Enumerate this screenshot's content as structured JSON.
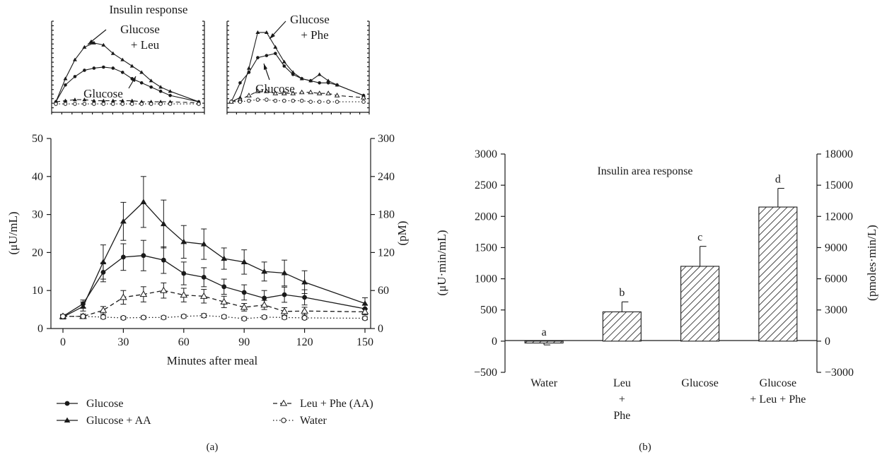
{
  "inset_title": "Insulin response",
  "inset_left": {
    "label_top_line1": "Glucose",
    "label_top_line2": "+ Leu",
    "label_bottom": "Glucose"
  },
  "inset_right": {
    "label_top_line1": "Glucose",
    "label_top_line2": "+ Phe",
    "label_bottom": "Glucose"
  },
  "legend": {
    "glucose": "Glucose",
    "glucose_aa": "Glucose + AA",
    "leu_phe": "Leu + Phe (AA)",
    "water": "Water"
  },
  "panel_labels": {
    "a": "(a)",
    "b": "(b)"
  },
  "chart_data": [
    {
      "id": "a",
      "type": "line",
      "xlabel": "Minutes after meal",
      "ylabel": "(μU/mL)",
      "ylabel_right": "(pM)",
      "xlim": [
        0,
        150
      ],
      "ylim": [
        0,
        50
      ],
      "ylim_right": [
        0,
        300
      ],
      "xticks": [
        0,
        30,
        60,
        90,
        120,
        150
      ],
      "yticks": [
        0,
        10,
        20,
        30,
        40,
        50
      ],
      "yticks_right": [
        0,
        60,
        120,
        180,
        240,
        300
      ],
      "x": [
        0,
        10,
        20,
        30,
        40,
        50,
        60,
        70,
        80,
        90,
        100,
        110,
        120,
        150
      ],
      "series": [
        {
          "name": "Glucose",
          "marker": "circle",
          "line": "solid",
          "values": [
            3.2,
            6.5,
            14.8,
            18.8,
            19.2,
            18.0,
            14.5,
            13.5,
            11.0,
            9.5,
            8.0,
            8.9,
            8.2,
            5.2
          ],
          "errors": [
            0.5,
            1.0,
            2.5,
            3.5,
            4.0,
            3.5,
            3.0,
            2.5,
            2.0,
            2.0,
            2.0,
            2.0,
            2.0,
            1.0
          ]
        },
        {
          "name": "Glucose + AA",
          "marker": "triangle",
          "line": "solid",
          "values": [
            3.0,
            5.8,
            17.5,
            28.2,
            33.3,
            27.5,
            22.8,
            22.2,
            18.4,
            17.5,
            15.0,
            14.6,
            12.2,
            6.6
          ],
          "errors": [
            0.5,
            1.2,
            4.5,
            5.0,
            6.7,
            6.3,
            4.3,
            4.0,
            2.8,
            3.2,
            2.5,
            3.4,
            3.0,
            1.5
          ]
        },
        {
          "name": "Leu + Phe (AA)",
          "marker": "open-triangle",
          "line": "dashed",
          "values": [
            3.2,
            3.2,
            4.8,
            8.2,
            9.0,
            10.0,
            8.8,
            8.5,
            7.0,
            5.6,
            6.2,
            4.5,
            4.6,
            4.4
          ],
          "errors": [
            0.4,
            0.6,
            1.0,
            1.8,
            2.0,
            2.0,
            1.8,
            1.8,
            1.5,
            1.0,
            1.2,
            1.0,
            1.0,
            0.8
          ]
        },
        {
          "name": "Water",
          "marker": "open-circle",
          "line": "dotted",
          "values": [
            3.2,
            3.2,
            3.0,
            2.8,
            2.9,
            2.9,
            3.2,
            3.4,
            3.1,
            2.6,
            3.0,
            2.9,
            2.8,
            2.7
          ],
          "errors": [
            0.3,
            0.3,
            0.4,
            0.4,
            0.4,
            0.4,
            0.4,
            0.5,
            0.4,
            0.4,
            0.4,
            0.4,
            0.4,
            0.4
          ]
        }
      ]
    },
    {
      "id": "inset-left",
      "type": "line",
      "title": "Insulin response",
      "series": [
        {
          "name": "Glucose + Leu",
          "marker": "triangle",
          "line": "solid",
          "x": [
            0,
            10,
            20,
            30,
            40,
            50,
            60,
            70,
            80,
            90,
            100,
            110,
            120,
            150
          ],
          "values": [
            3,
            14,
            23,
            29,
            31,
            30,
            26,
            23,
            20,
            17,
            13,
            10,
            8,
            3
          ]
        },
        {
          "name": "Glucose",
          "marker": "circle",
          "line": "solid",
          "x": [
            0,
            10,
            20,
            30,
            40,
            50,
            60,
            70,
            80,
            90,
            100,
            110,
            120,
            150
          ],
          "values": [
            3,
            11,
            15,
            18,
            19,
            19.5,
            19,
            17,
            14,
            12,
            10,
            8,
            6,
            3
          ]
        },
        {
          "name": "Leu",
          "marker": "triangle",
          "line": "dashed",
          "x": [
            0,
            10,
            20,
            30,
            40,
            50,
            60,
            70,
            80,
            90,
            100,
            110,
            120,
            150
          ],
          "values": [
            3,
            3.5,
            4,
            4,
            3.5,
            3.5,
            3.5,
            3.5,
            3.5,
            3,
            3,
            3,
            3,
            2.5
          ]
        },
        {
          "name": "Water",
          "marker": "open-circle",
          "line": "dotted",
          "x": [
            0,
            10,
            20,
            30,
            40,
            50,
            60,
            70,
            80,
            90,
            100,
            110,
            120,
            150
          ],
          "values": [
            2,
            2,
            2,
            2,
            2,
            2,
            2,
            2,
            2,
            2,
            2,
            2,
            2,
            2
          ]
        }
      ]
    },
    {
      "id": "inset-right",
      "type": "line",
      "series": [
        {
          "name": "Glucose + Phe",
          "marker": "triangle",
          "line": "solid",
          "x": [
            0,
            10,
            20,
            30,
            40,
            50,
            60,
            70,
            80,
            90,
            100,
            110,
            120,
            150
          ],
          "values": [
            3,
            5,
            19,
            36,
            36,
            29,
            22,
            17,
            14,
            13,
            16,
            13,
            11,
            6
          ]
        },
        {
          "name": "Glucose",
          "marker": "circle",
          "line": "solid",
          "x": [
            0,
            10,
            20,
            30,
            40,
            50,
            60,
            70,
            80,
            90,
            100,
            110,
            120,
            150
          ],
          "values": [
            3,
            12,
            17,
            24,
            25,
            26,
            20,
            16,
            14,
            13,
            12,
            12,
            11,
            6
          ]
        },
        {
          "name": "Phe",
          "marker": "open-triangle",
          "line": "dashed",
          "x": [
            0,
            10,
            20,
            30,
            40,
            50,
            60,
            70,
            80,
            90,
            100,
            110,
            120,
            150
          ],
          "values": [
            3,
            4,
            6,
            8,
            8,
            7,
            7,
            7,
            7.5,
            7.5,
            7,
            7,
            6,
            5
          ]
        },
        {
          "name": "Water",
          "marker": "open-circle",
          "line": "dotted",
          "x": [
            0,
            10,
            20,
            30,
            40,
            50,
            60,
            70,
            80,
            90,
            100,
            110,
            120,
            150
          ],
          "values": [
            3,
            3,
            3.5,
            4,
            4,
            3.5,
            3.5,
            3.5,
            3.5,
            3,
            3,
            3,
            3,
            3
          ]
        }
      ]
    },
    {
      "id": "b",
      "type": "bar",
      "title": "Insulin area response",
      "ylabel": "(μU·min/mL)",
      "ylabel_right": "(pmoles·min/L)",
      "ylim": [
        -500,
        3000
      ],
      "ylim_right": [
        -3000,
        18000
      ],
      "yticks": [
        -500,
        0,
        500,
        1000,
        1500,
        2000,
        2500,
        3000
      ],
      "yticks_right": [
        -3000,
        0,
        3000,
        6000,
        9000,
        12000,
        15000,
        18000
      ],
      "categories": [
        [
          "Water"
        ],
        [
          "Leu",
          "+",
          "Phe"
        ],
        [
          "Glucose"
        ],
        [
          "Glucose",
          "+ Leu + Phe"
        ]
      ],
      "values": [
        -30,
        470,
        1200,
        2150
      ],
      "errors": [
        30,
        160,
        320,
        300
      ],
      "letters": [
        "a",
        "b",
        "c",
        "d"
      ]
    }
  ]
}
